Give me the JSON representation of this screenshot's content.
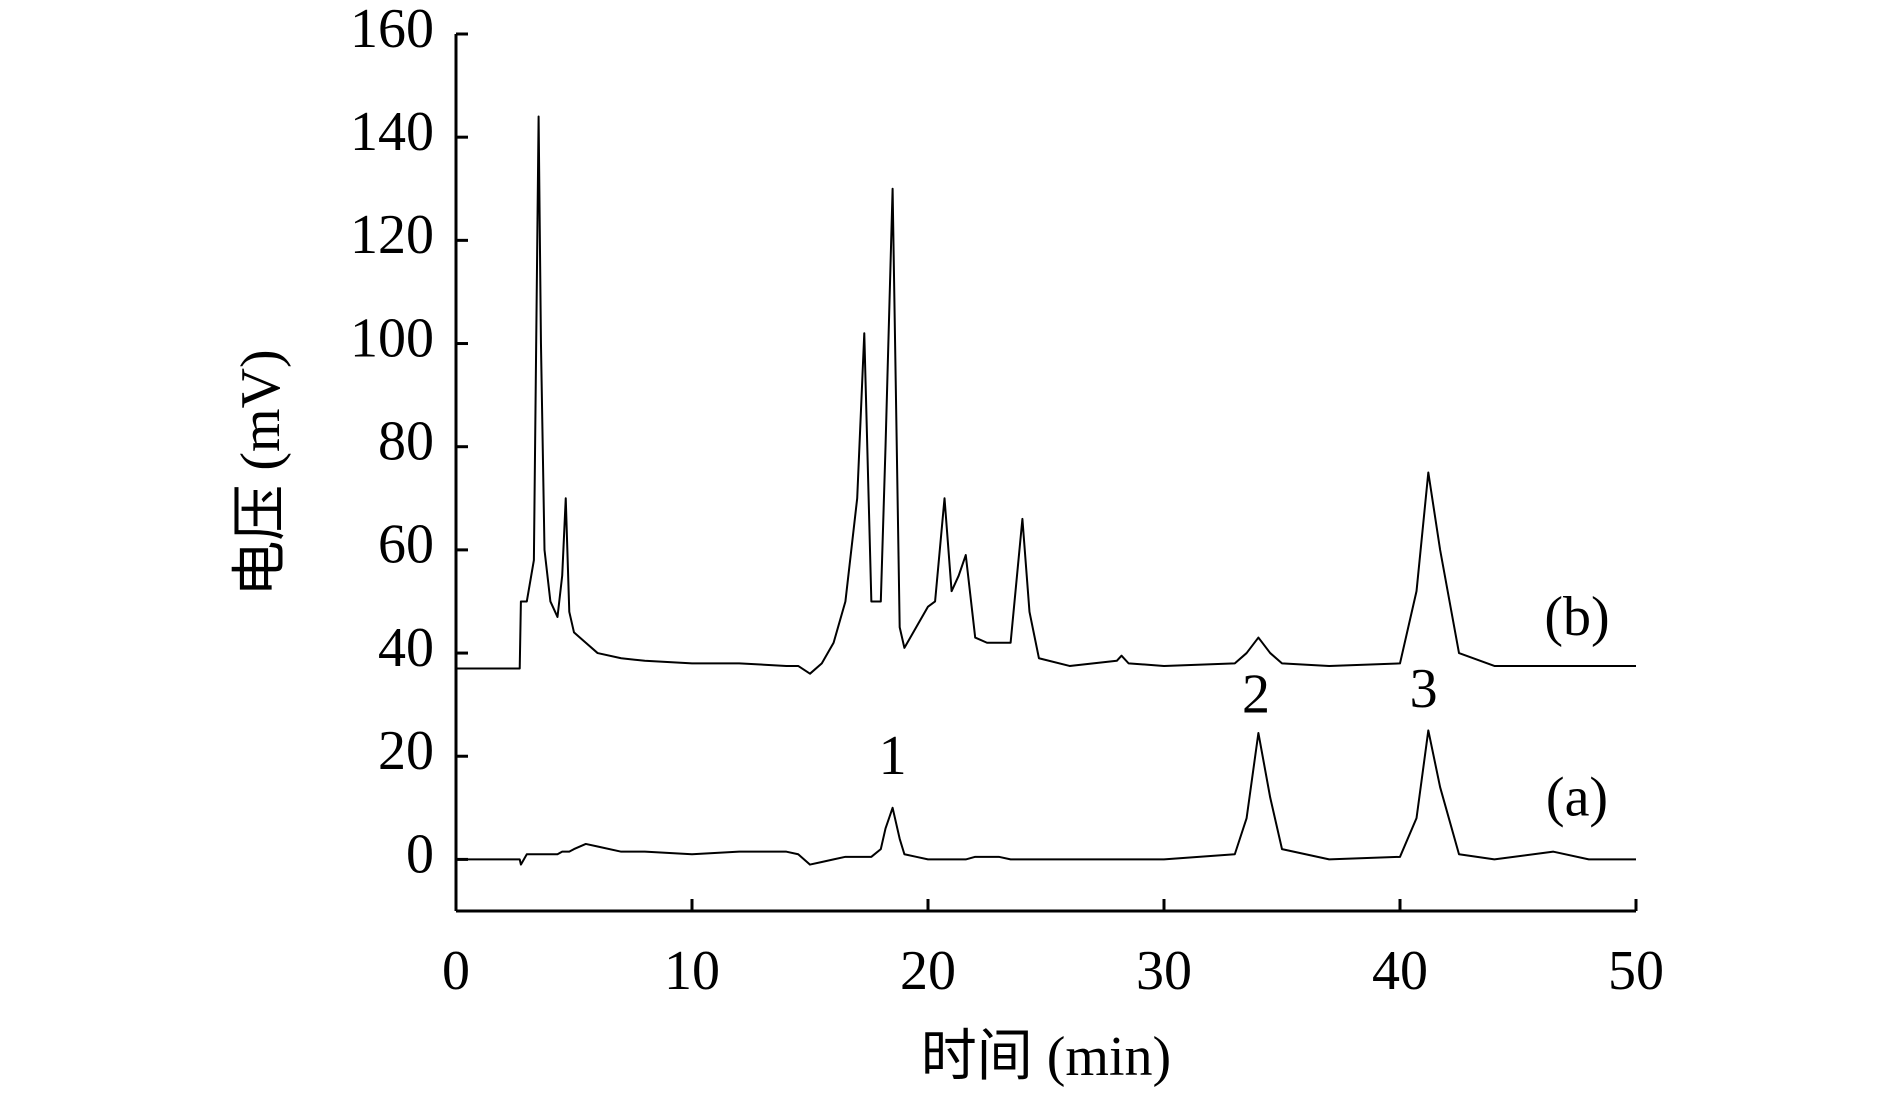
{
  "chart_data": {
    "type": "line",
    "xlabel": "时间 (min)",
    "ylabel": "电压 (mV)",
    "x": [
      0,
      2.7,
      2.75,
      3.0,
      3.3,
      3.5,
      3.6,
      3.75,
      4.0,
      4.3,
      4.5,
      4.65,
      4.8,
      5.0,
      5.5,
      6,
      7,
      8,
      10,
      12,
      14,
      14.5,
      15,
      15.5,
      16,
      16.5,
      17,
      17.3,
      17.6,
      18,
      18.2,
      18.5,
      18.8,
      19,
      19.5,
      20,
      20.3,
      20.7,
      21,
      21.3,
      21.6,
      22,
      22.5,
      23,
      23.5,
      24,
      24.3,
      24.7,
      26,
      28,
      28.2,
      28.5,
      30,
      33,
      33.5,
      34,
      34.5,
      35,
      37,
      40,
      40.7,
      41.2,
      41.7,
      42.5,
      44,
      46.5,
      48,
      50
    ],
    "series": [
      {
        "name": "(a)",
        "color": "#000000",
        "values": [
          0,
          0,
          -1,
          1,
          1,
          1,
          1,
          1,
          1,
          1,
          1.5,
          1.5,
          1.5,
          2,
          3,
          2.5,
          1.5,
          1.5,
          1,
          1.5,
          1.5,
          1,
          -1,
          -0.5,
          0,
          0.5,
          0.5,
          0.5,
          0.5,
          2,
          6,
          10,
          4,
          1,
          0.5,
          0,
          0,
          0,
          0,
          0,
          0,
          0.5,
          0.5,
          0.5,
          0,
          0,
          0,
          0,
          0,
          0,
          0,
          0,
          0,
          1,
          8,
          24.5,
          12,
          2,
          0,
          0.5,
          8,
          25,
          14,
          1,
          0,
          1.5,
          0,
          0
        ]
      },
      {
        "name": "(b)",
        "color": "#000000",
        "values": [
          37,
          37,
          50,
          50,
          58,
          144,
          100,
          60,
          50,
          47,
          55,
          70,
          48,
          44,
          42,
          40,
          39,
          38.5,
          38,
          38,
          37.5,
          37.5,
          36,
          38,
          42,
          50,
          70,
          102,
          50,
          50,
          80,
          130,
          45,
          41,
          45,
          49,
          50,
          70,
          52,
          55,
          59,
          43,
          42,
          42,
          42,
          66,
          48,
          39,
          37.5,
          38.5,
          39.5,
          38,
          37.5,
          38,
          40,
          43,
          40,
          38,
          37.5,
          38,
          52,
          75,
          60,
          40,
          37.5,
          37.5,
          37.5,
          37.5
        ]
      }
    ],
    "annotations": [
      {
        "text": "1",
        "x": 18.5,
        "y": 19
      },
      {
        "text": "2",
        "x": 33.9,
        "y": 31
      },
      {
        "text": "3",
        "x": 41,
        "y": 32
      },
      {
        "text": "(b)",
        "x": 47.5,
        "y": 46
      },
      {
        "text": "(a)",
        "x": 47.5,
        "y": 11
      }
    ],
    "xlim": [
      0,
      50
    ],
    "xticks": [
      0,
      10,
      20,
      30,
      40,
      50
    ],
    "ylim": [
      -10,
      160
    ],
    "yticks": [
      0,
      20,
      40,
      60,
      80,
      100,
      120,
      140,
      160
    ]
  }
}
